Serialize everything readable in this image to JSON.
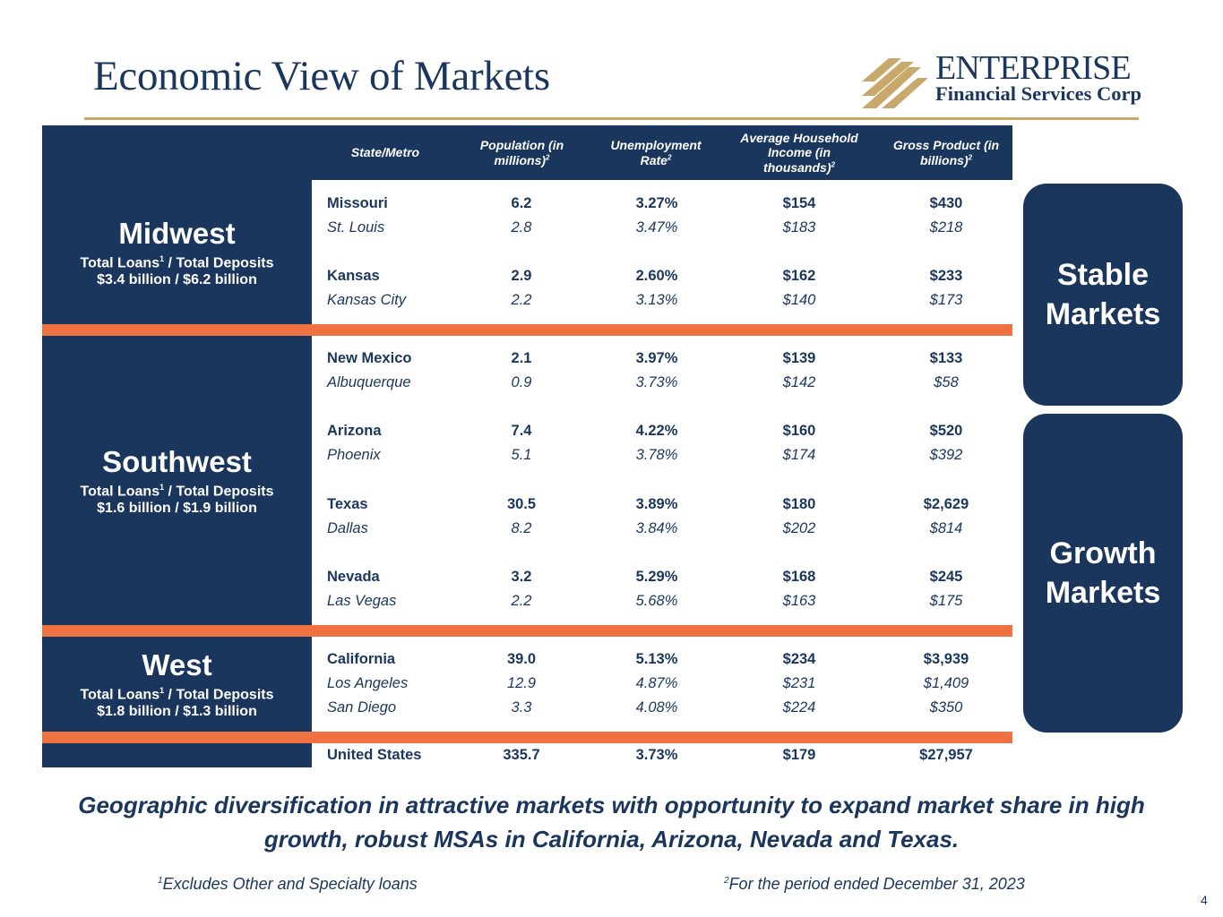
{
  "title": "Economic View of Markets",
  "logo": {
    "word": "ENTERPRISE",
    "sub": "Financial Services Corp"
  },
  "colors": {
    "navy": "#1b365d",
    "orange": "#f07241",
    "gold": "#c9a96b"
  },
  "table": {
    "headers": {
      "state": "State/Metro",
      "pop": "Population (in millions)",
      "unemp": "Unemployment Rate",
      "income": "Average Household Income (in thousands)",
      "gdp": "Gross Product (in billions)",
      "footnote_mark": "2"
    },
    "regions": {
      "midwest": {
        "name": "Midwest",
        "sub_label": "Total Loans",
        "sup": "1",
        "sub_rest": " / Total Deposits",
        "values": "$3.4 billion / $6.2 billion"
      },
      "southwest": {
        "name": "Southwest",
        "sub_label": "Total Loans",
        "sup": "1",
        "sub_rest": " / Total Deposits",
        "values": "$1.6 billion / $1.9 billion"
      },
      "west": {
        "name": "West",
        "sub_label": "Total Loans",
        "sup": "1",
        "sub_rest": " / Total Deposits",
        "values": "$1.8 billion / $1.3 billion"
      }
    },
    "rows": [
      {
        "name": "Missouri",
        "pop": "6.2",
        "unemp": "3.27%",
        "income": "$154",
        "gdp": "$430"
      },
      {
        "name": "St. Louis",
        "pop": "2.8",
        "unemp": "3.47%",
        "income": "$183",
        "gdp": "$218"
      },
      {
        "name": "Kansas",
        "pop": "2.9",
        "unemp": "2.60%",
        "income": "$162",
        "gdp": "$233"
      },
      {
        "name": "Kansas City",
        "pop": "2.2",
        "unemp": "3.13%",
        "income": "$140",
        "gdp": "$173"
      },
      {
        "name": "New Mexico",
        "pop": "2.1",
        "unemp": "3.97%",
        "income": "$139",
        "gdp": "$133"
      },
      {
        "name": "Albuquerque",
        "pop": "0.9",
        "unemp": "3.73%",
        "income": "$142",
        "gdp": "$58"
      },
      {
        "name": "Arizona",
        "pop": "7.4",
        "unemp": "4.22%",
        "income": "$160",
        "gdp": "$520"
      },
      {
        "name": "Phoenix",
        "pop": "5.1",
        "unemp": "3.78%",
        "income": "$174",
        "gdp": "$392"
      },
      {
        "name": "Texas",
        "pop": "30.5",
        "unemp": "3.89%",
        "income": "$180",
        "gdp": "$2,629"
      },
      {
        "name": "Dallas",
        "pop": "8.2",
        "unemp": "3.84%",
        "income": "$202",
        "gdp": "$814"
      },
      {
        "name": "Nevada",
        "pop": "3.2",
        "unemp": "5.29%",
        "income": "$168",
        "gdp": "$245"
      },
      {
        "name": "Las Vegas",
        "pop": "2.2",
        "unemp": "5.68%",
        "income": "$163",
        "gdp": "$175"
      },
      {
        "name": "California",
        "pop": "39.0",
        "unemp": "5.13%",
        "income": "$234",
        "gdp": "$3,939"
      },
      {
        "name": "Los Angeles",
        "pop": "12.9",
        "unemp": "4.87%",
        "income": "$231",
        "gdp": "$1,409"
      },
      {
        "name": "San Diego",
        "pop": "3.3",
        "unemp": "4.08%",
        "income": "$224",
        "gdp": "$350"
      },
      {
        "name": "United States",
        "pop": "335.7",
        "unemp": "3.73%",
        "income": "$179",
        "gdp": "$27,957"
      }
    ]
  },
  "side_labels": {
    "stable": "Stable Markets",
    "growth": "Growth Markets"
  },
  "tagline": "Geographic diversification in attractive markets with opportunity to expand market share in high growth, robust MSAs in California, Arizona, Nevada and Texas.",
  "footnotes": {
    "one_mark": "1",
    "one": "Excludes Other and Specialty loans",
    "two_mark": "2",
    "two": "For the period ended December 31, 2023"
  },
  "page_number": "4"
}
